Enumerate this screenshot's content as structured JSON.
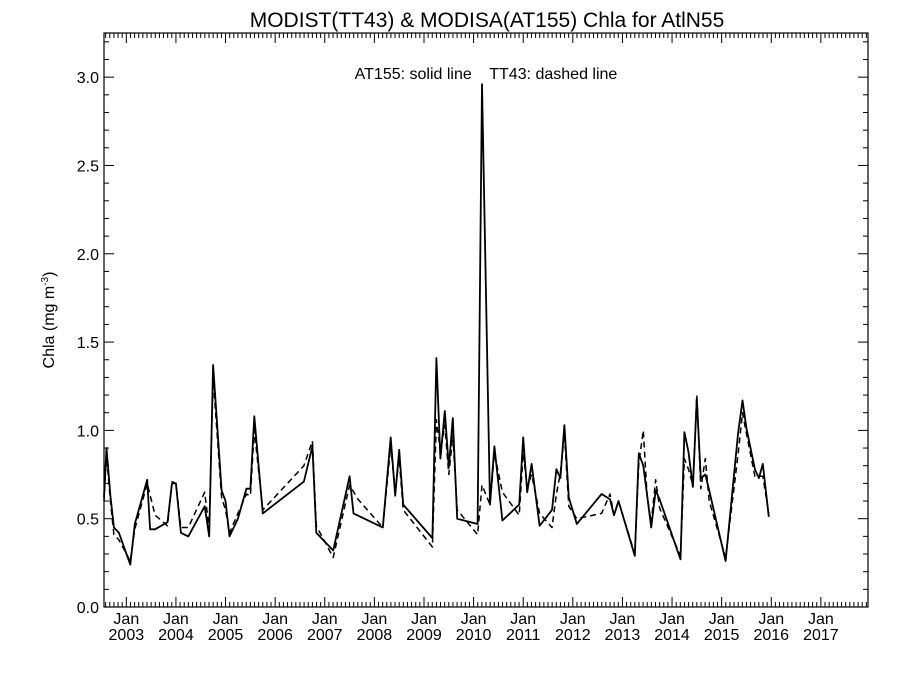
{
  "chart_data": {
    "type": "line",
    "title": "MODIST(TT43) & MODISA(AT155)  Chla for AtlN55",
    "annotation": "AT155: solid line    TT43: dashed line",
    "ylabel": {
      "text": "Chla (mg m",
      "superscript": "-3",
      "close": ")"
    },
    "xlabel": "",
    "xlim": [
      2002.55,
      2017.95
    ],
    "ylim": [
      0.0,
      3.25
    ],
    "yticks": [
      0.0,
      0.5,
      1.0,
      1.5,
      2.0,
      2.5,
      3.0
    ],
    "ytick_labels": [
      "0.0",
      "0.5",
      "1.0",
      "1.5",
      "2.0",
      "2.5",
      "3.0"
    ],
    "xticks": [
      {
        "x": 2003.0,
        "month": "Jan",
        "year": "2003"
      },
      {
        "x": 2004.0,
        "month": "Jan",
        "year": "2004"
      },
      {
        "x": 2005.0,
        "month": "Jan",
        "year": "2005"
      },
      {
        "x": 2006.0,
        "month": "Jan",
        "year": "2006"
      },
      {
        "x": 2007.0,
        "month": "Jan",
        "year": "2007"
      },
      {
        "x": 2008.0,
        "month": "Jan",
        "year": "2008"
      },
      {
        "x": 2009.0,
        "month": "Jan",
        "year": "2009"
      },
      {
        "x": 2010.0,
        "month": "Jan",
        "year": "2010"
      },
      {
        "x": 2011.0,
        "month": "Jan",
        "year": "2011"
      },
      {
        "x": 2012.0,
        "month": "Jan",
        "year": "2012"
      },
      {
        "x": 2013.0,
        "month": "Jan",
        "year": "2013"
      },
      {
        "x": 2014.0,
        "month": "Jan",
        "year": "2014"
      },
      {
        "x": 2015.0,
        "month": "Jan",
        "year": "2015"
      },
      {
        "x": 2016.0,
        "month": "Jan",
        "year": "2016"
      },
      {
        "x": 2017.0,
        "month": "Jan",
        "year": "2017"
      }
    ],
    "grid": false,
    "series": [
      {
        "name": "AT155",
        "style": "solid",
        "points": [
          [
            2002.55,
            0.62
          ],
          [
            2002.6,
            0.9
          ],
          [
            2002.68,
            0.63
          ],
          [
            2002.75,
            0.45
          ],
          [
            2002.85,
            0.42
          ],
          [
            2003.08,
            0.24
          ],
          [
            2003.17,
            0.47
          ],
          [
            2003.42,
            0.72
          ],
          [
            2003.48,
            0.44
          ],
          [
            2003.58,
            0.44
          ],
          [
            2003.83,
            0.48
          ],
          [
            2003.92,
            0.7
          ],
          [
            2004.0,
            0.7
          ],
          [
            2004.1,
            0.42
          ],
          [
            2004.25,
            0.4
          ],
          [
            2004.58,
            0.57
          ],
          [
            2004.67,
            0.4
          ],
          [
            2004.75,
            1.37
          ],
          [
            2004.92,
            0.66
          ],
          [
            2005.0,
            0.6
          ],
          [
            2005.08,
            0.4
          ],
          [
            2005.25,
            0.5
          ],
          [
            2005.42,
            0.67
          ],
          [
            2005.5,
            0.67
          ],
          [
            2005.58,
            1.08
          ],
          [
            2005.75,
            0.53
          ],
          [
            2006.58,
            0.71
          ],
          [
            2006.75,
            0.91
          ],
          [
            2006.83,
            0.42
          ],
          [
            2007.17,
            0.32
          ],
          [
            2007.5,
            0.74
          ],
          [
            2007.58,
            0.53
          ],
          [
            2008.17,
            0.45
          ],
          [
            2008.33,
            0.96
          ],
          [
            2008.42,
            0.63
          ],
          [
            2008.5,
            0.89
          ],
          [
            2008.58,
            0.58
          ],
          [
            2009.17,
            0.39
          ],
          [
            2009.25,
            1.41
          ],
          [
            2009.33,
            0.84
          ],
          [
            2009.42,
            1.11
          ],
          [
            2009.5,
            0.79
          ],
          [
            2009.58,
            1.07
          ],
          [
            2009.67,
            0.5
          ],
          [
            2010.08,
            0.47
          ],
          [
            2010.17,
            2.96
          ],
          [
            2010.33,
            0.58
          ],
          [
            2010.42,
            0.91
          ],
          [
            2010.58,
            0.49
          ],
          [
            2010.92,
            0.58
          ],
          [
            2011.0,
            0.96
          ],
          [
            2011.08,
            0.65
          ],
          [
            2011.17,
            0.81
          ],
          [
            2011.33,
            0.46
          ],
          [
            2011.58,
            0.55
          ],
          [
            2011.67,
            0.78
          ],
          [
            2011.75,
            0.73
          ],
          [
            2011.83,
            1.03
          ],
          [
            2011.92,
            0.62
          ],
          [
            2012.08,
            0.47
          ],
          [
            2012.58,
            0.64
          ],
          [
            2012.75,
            0.61
          ],
          [
            2012.83,
            0.52
          ],
          [
            2012.92,
            0.6
          ],
          [
            2013.25,
            0.29
          ],
          [
            2013.33,
            0.87
          ],
          [
            2013.42,
            0.8
          ],
          [
            2013.5,
            0.63
          ],
          [
            2013.58,
            0.45
          ],
          [
            2013.67,
            0.66
          ],
          [
            2013.75,
            0.61
          ],
          [
            2014.17,
            0.27
          ],
          [
            2014.25,
            0.99
          ],
          [
            2014.33,
            0.88
          ],
          [
            2014.42,
            0.68
          ],
          [
            2014.5,
            1.18
          ],
          [
            2014.58,
            0.73
          ],
          [
            2014.67,
            0.75
          ],
          [
            2014.75,
            0.66
          ],
          [
            2015.08,
            0.26
          ],
          [
            2015.33,
            0.98
          ],
          [
            2015.42,
            1.17
          ],
          [
            2015.5,
            1.01
          ],
          [
            2015.67,
            0.78
          ],
          [
            2015.75,
            0.73
          ],
          [
            2015.83,
            0.81
          ],
          [
            2015.95,
            0.51
          ]
        ]
      },
      {
        "name": "TT43",
        "style": "dashed",
        "points": [
          [
            2002.55,
            0.6
          ],
          [
            2002.6,
            0.86
          ],
          [
            2002.68,
            0.6
          ],
          [
            2002.75,
            0.41
          ],
          [
            2002.85,
            0.38
          ],
          [
            2003.08,
            0.26
          ],
          [
            2003.17,
            0.44
          ],
          [
            2003.42,
            0.7
          ],
          [
            2003.58,
            0.52
          ],
          [
            2003.83,
            0.46
          ],
          [
            2003.92,
            0.71
          ],
          [
            2004.0,
            0.7
          ],
          [
            2004.1,
            0.45
          ],
          [
            2004.25,
            0.45
          ],
          [
            2004.58,
            0.65
          ],
          [
            2004.67,
            0.44
          ],
          [
            2004.75,
            1.3
          ],
          [
            2004.92,
            0.62
          ],
          [
            2005.0,
            0.55
          ],
          [
            2005.08,
            0.42
          ],
          [
            2005.42,
            0.64
          ],
          [
            2005.5,
            0.63
          ],
          [
            2005.58,
            1.0
          ],
          [
            2005.75,
            0.55
          ],
          [
            2006.58,
            0.8
          ],
          [
            2006.75,
            0.94
          ],
          [
            2006.83,
            0.46
          ],
          [
            2007.17,
            0.28
          ],
          [
            2007.5,
            0.69
          ],
          [
            2007.67,
            0.61
          ],
          [
            2008.17,
            0.45
          ],
          [
            2008.33,
            0.91
          ],
          [
            2008.42,
            0.66
          ],
          [
            2008.5,
            0.84
          ],
          [
            2008.58,
            0.55
          ],
          [
            2009.17,
            0.34
          ],
          [
            2009.25,
            1.06
          ],
          [
            2009.33,
            0.88
          ],
          [
            2009.42,
            1.03
          ],
          [
            2009.5,
            0.75
          ],
          [
            2009.58,
            0.97
          ],
          [
            2009.67,
            0.55
          ],
          [
            2010.08,
            0.41
          ],
          [
            2010.17,
            0.69
          ],
          [
            2010.33,
            0.58
          ],
          [
            2010.42,
            0.87
          ],
          [
            2010.58,
            0.65
          ],
          [
            2010.92,
            0.52
          ],
          [
            2011.0,
            0.87
          ],
          [
            2011.08,
            0.68
          ],
          [
            2011.17,
            0.75
          ],
          [
            2011.33,
            0.53
          ],
          [
            2011.58,
            0.45
          ],
          [
            2011.67,
            0.64
          ],
          [
            2011.75,
            0.76
          ],
          [
            2011.83,
            0.98
          ],
          [
            2011.92,
            0.57
          ],
          [
            2012.08,
            0.5
          ],
          [
            2012.58,
            0.53
          ],
          [
            2012.75,
            0.64
          ],
          [
            2012.83,
            0.52
          ],
          [
            2012.92,
            0.6
          ],
          [
            2013.25,
            0.3
          ],
          [
            2013.33,
            0.81
          ],
          [
            2013.42,
            1.0
          ],
          [
            2013.5,
            0.62
          ],
          [
            2013.58,
            0.48
          ],
          [
            2013.67,
            0.72
          ],
          [
            2013.75,
            0.56
          ],
          [
            2014.17,
            0.29
          ],
          [
            2014.25,
            0.84
          ],
          [
            2014.33,
            0.78
          ],
          [
            2014.42,
            0.69
          ],
          [
            2014.5,
            1.2
          ],
          [
            2014.58,
            0.67
          ],
          [
            2014.67,
            0.84
          ],
          [
            2014.75,
            0.6
          ],
          [
            2015.08,
            0.28
          ],
          [
            2015.33,
            0.86
          ],
          [
            2015.42,
            1.1
          ],
          [
            2015.5,
            0.98
          ],
          [
            2015.67,
            0.74
          ],
          [
            2015.75,
            0.74
          ],
          [
            2015.83,
            0.74
          ],
          [
            2015.95,
            0.53
          ]
        ]
      }
    ]
  }
}
